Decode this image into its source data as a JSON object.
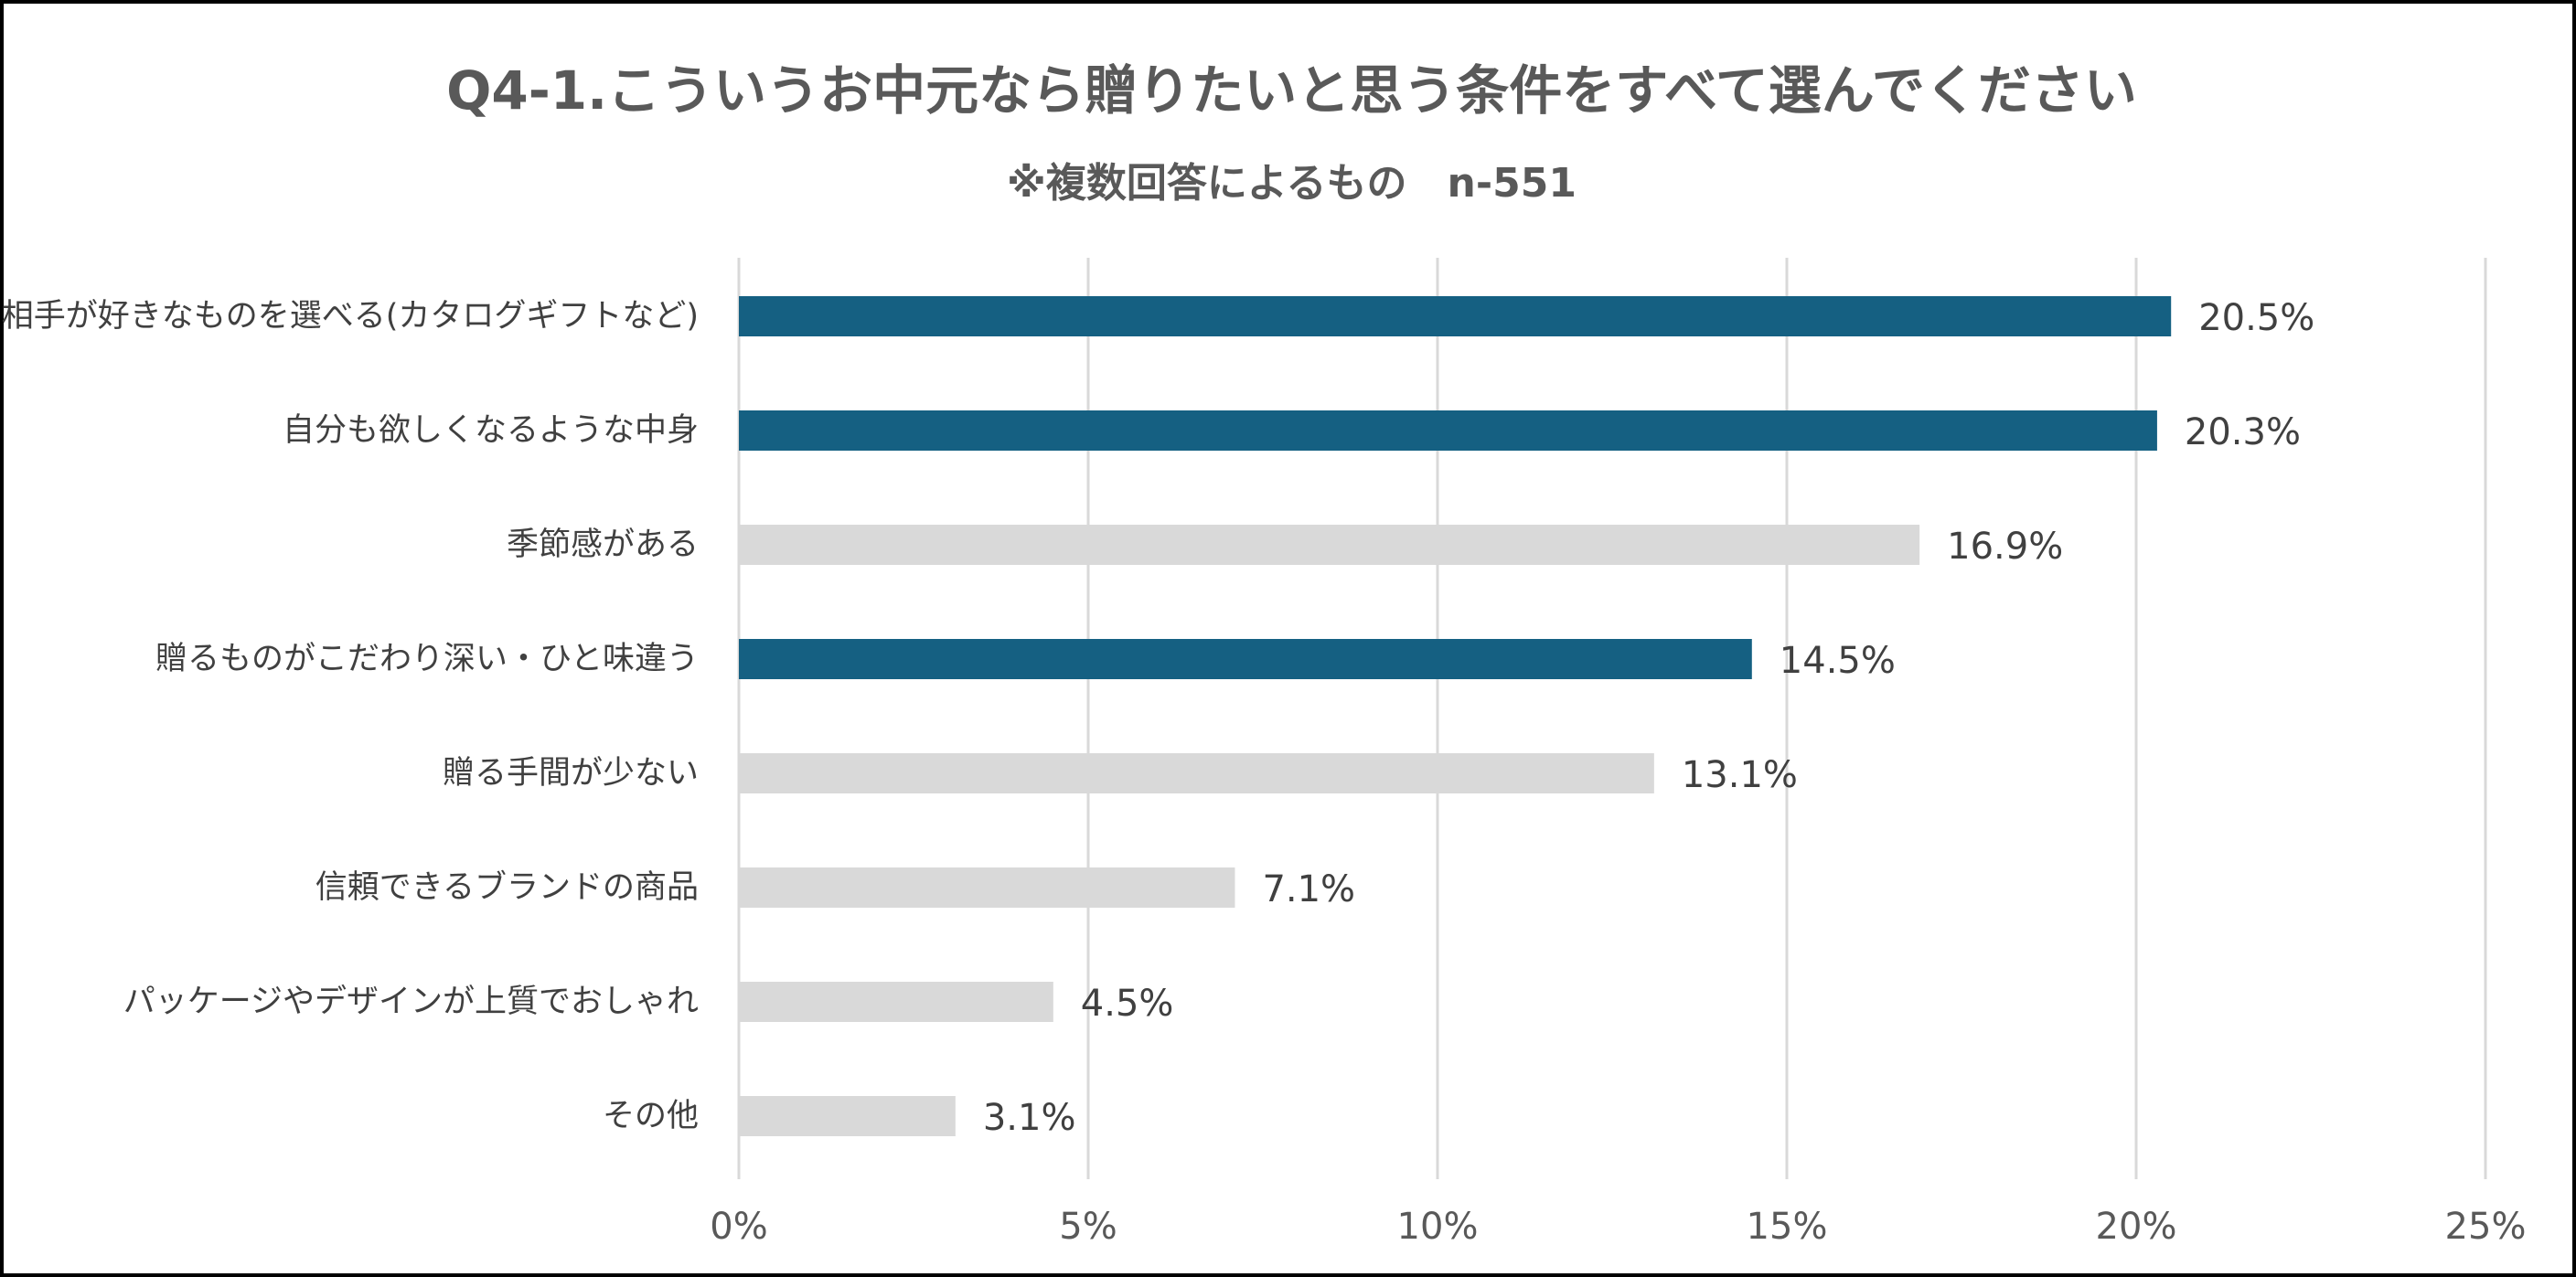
{
  "chart_data": {
    "type": "bar",
    "orientation": "horizontal",
    "title": "Q4-1.こういうお中元なら贈りたいと思う条件をすべて選んでください",
    "subtitle": "※複数回答によるもの　n-551",
    "categories": [
      "相手が好きなものを選べる(カタログギフトなど)",
      "自分も欲しくなるような中身",
      "季節感がある",
      "贈るものがこだわり深い・ひと味違う",
      "贈る手間が少ない",
      "信頼できるブランドの商品",
      "パッケージやデザインが上質でおしゃれ",
      "その他"
    ],
    "values": [
      20.5,
      20.3,
      16.9,
      14.5,
      13.1,
      7.1,
      4.5,
      3.1
    ],
    "value_labels": [
      "20.5%",
      "20.3%",
      "16.9%",
      "14.5%",
      "13.1%",
      "7.1%",
      "4.5%",
      "3.1%"
    ],
    "highlighted": [
      true,
      true,
      false,
      true,
      false,
      false,
      false,
      false
    ],
    "xlim": [
      0,
      25
    ],
    "ticks": [
      0,
      5,
      10,
      15,
      20,
      25
    ],
    "tick_labels": [
      "0%",
      "5%",
      "10%",
      "15%",
      "20%",
      "25%"
    ],
    "grid": "vertical",
    "colors": {
      "highlight": "#156082",
      "normal": "#d9d9d9",
      "grid": "#d9d9d9"
    }
  }
}
